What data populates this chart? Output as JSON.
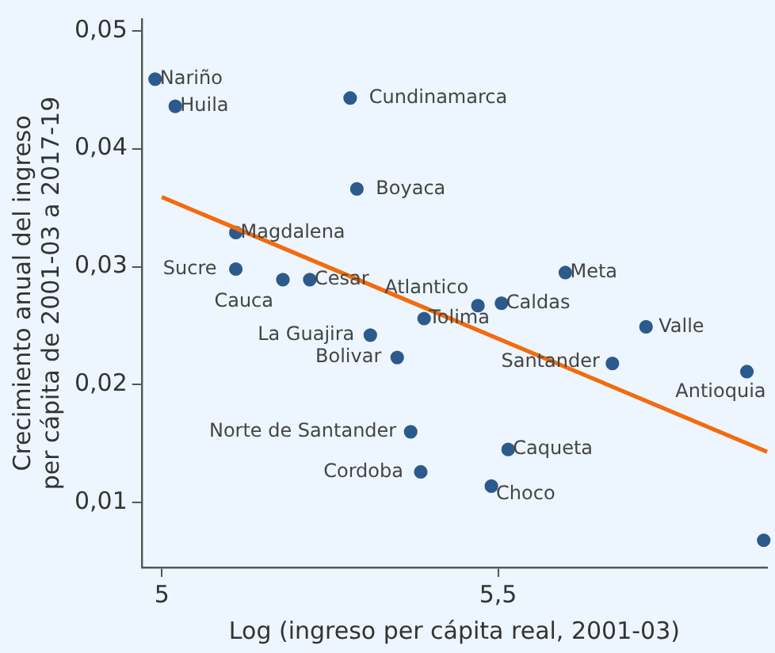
{
  "chart_data": {
    "type": "scatter",
    "xlabel": "Log (ingreso per cápita real, 2001-03)",
    "ylabel": "Crecimiento anual del ingreso per cápita de 2001-03 a 2017-19",
    "xlim": [
      4.97,
      5.9
    ],
    "xticks": [
      {
        "value": 5,
        "label": "5"
      },
      {
        "value": 5.5,
        "label": "5,5"
      }
    ],
    "ylim": [
      0.0045,
      0.051
    ],
    "yticks": [
      {
        "value": 0.01,
        "label": "0,01"
      },
      {
        "value": 0.02,
        "label": "0,02"
      },
      {
        "value": 0.03,
        "label": "0,03"
      },
      {
        "value": 0.04,
        "label": "0,04"
      },
      {
        "value": 0.05,
        "label": "0,05"
      }
    ],
    "grid": false,
    "legend": false,
    "marker": "circle",
    "series": [
      {
        "type": "scatter",
        "color": "#2d5a8c",
        "x": [
          4.99,
          5.02,
          5.28,
          5.29,
          5.11,
          5.11,
          5.18,
          5.22,
          5.47,
          5.505,
          5.6,
          5.39,
          5.31,
          5.35,
          5.72,
          5.67,
          5.87,
          5.37,
          5.515,
          5.385,
          5.49,
          5.895
        ],
        "values": [
          0.0459,
          0.0436,
          0.0443,
          0.0366,
          0.0329,
          0.0298,
          0.0289,
          0.0289,
          0.0267,
          0.0269,
          0.0295,
          0.0256,
          0.0242,
          0.0223,
          0.0249,
          0.0218,
          0.0211,
          0.016,
          0.0145,
          0.0126,
          0.0114,
          0.0068
        ]
      },
      {
        "type": "line",
        "color": "#f26b0f",
        "marker": "none",
        "x": [
          5.0,
          5.9
        ],
        "values": [
          0.0359,
          0.0143
        ]
      }
    ],
    "annotations": [
      {
        "text": "Nariño",
        "x": 4.99,
        "y": 0.0459
      },
      {
        "text": "Huila",
        "x": 5.02,
        "y": 0.0436
      },
      {
        "text": "Cundinamarca",
        "x": 5.28,
        "y": 0.0443
      },
      {
        "text": "Boyaca",
        "x": 5.29,
        "y": 0.0366
      },
      {
        "text": "Magdalena",
        "x": 5.11,
        "y": 0.0329
      },
      {
        "text": "Sucre",
        "x": 5.11,
        "y": 0.0298
      },
      {
        "text": "Cauca",
        "x": 5.18,
        "y": 0.0289
      },
      {
        "text": "Cesar",
        "x": 5.22,
        "y": 0.0289
      },
      {
        "text": "Atlantico",
        "x": 5.47,
        "y": 0.0267
      },
      {
        "text": "Caldas",
        "x": 5.505,
        "y": 0.0269
      },
      {
        "text": "Meta",
        "x": 5.6,
        "y": 0.0295
      },
      {
        "text": "Tolima",
        "x": 5.39,
        "y": 0.0256
      },
      {
        "text": "La Guajira",
        "x": 5.31,
        "y": 0.0242
      },
      {
        "text": "Bolivar",
        "x": 5.35,
        "y": 0.0223
      },
      {
        "text": "Valle",
        "x": 5.72,
        "y": 0.0249
      },
      {
        "text": "Santander",
        "x": 5.67,
        "y": 0.0218
      },
      {
        "text": "Antioquia",
        "x": 5.87,
        "y": 0.0211
      },
      {
        "text": "Norte de Santander",
        "x": 5.37,
        "y": 0.016
      },
      {
        "text": "Caqueta",
        "x": 5.515,
        "y": 0.0145
      },
      {
        "text": "Cordoba",
        "x": 5.385,
        "y": 0.0126
      },
      {
        "text": "Choco",
        "x": 5.49,
        "y": 0.0114
      }
    ]
  }
}
